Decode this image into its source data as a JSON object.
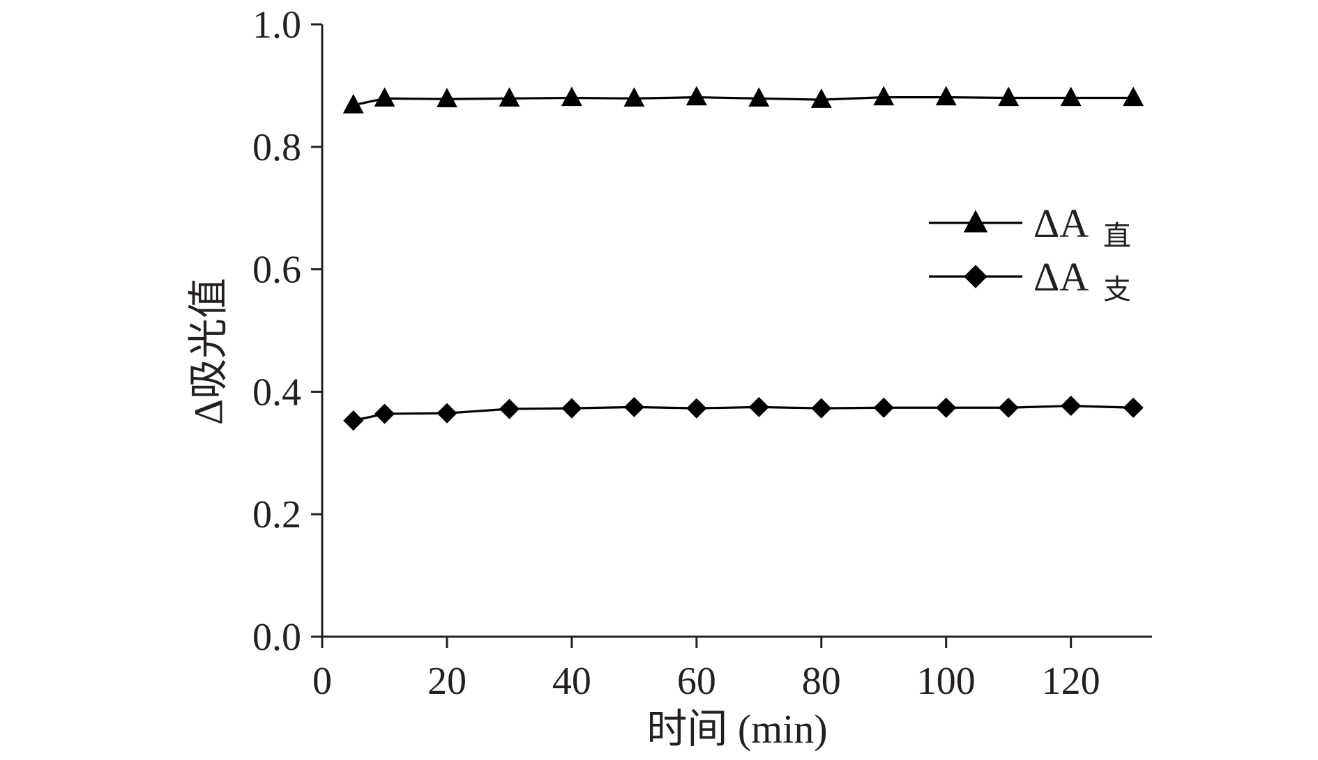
{
  "chart_data": {
    "type": "line",
    "xlabel": "时间 (min)",
    "ylabel": "Δ吸光值",
    "xlim": [
      0,
      133
    ],
    "ylim": [
      0.0,
      1.0
    ],
    "x_ticks": [
      0,
      20,
      40,
      60,
      80,
      100,
      120
    ],
    "x_tick_labels": [
      "0",
      "20",
      "40",
      "60",
      "80",
      "100",
      "120"
    ],
    "y_ticks": [
      0.0,
      0.2,
      0.4,
      0.6,
      0.8,
      1.0
    ],
    "y_tick_labels": [
      "0.0",
      "0.2",
      "0.4",
      "0.6",
      "0.8",
      "1.0"
    ],
    "grid": false,
    "legend_position": "right",
    "x": [
      5,
      10,
      20,
      30,
      40,
      50,
      60,
      70,
      80,
      90,
      100,
      110,
      120,
      130
    ],
    "series": [
      {
        "name": "ΔA",
        "name_sub": "直",
        "marker": "triangle",
        "color": "#000000",
        "values": [
          0.868,
          0.879,
          0.878,
          0.879,
          0.88,
          0.879,
          0.881,
          0.879,
          0.877,
          0.881,
          0.881,
          0.88,
          0.88,
          0.88
        ]
      },
      {
        "name": "ΔA",
        "name_sub": "支",
        "marker": "diamond",
        "color": "#000000",
        "values": [
          0.353,
          0.364,
          0.365,
          0.372,
          0.373,
          0.375,
          0.373,
          0.375,
          0.373,
          0.374,
          0.374,
          0.374,
          0.377,
          0.374
        ]
      }
    ]
  }
}
